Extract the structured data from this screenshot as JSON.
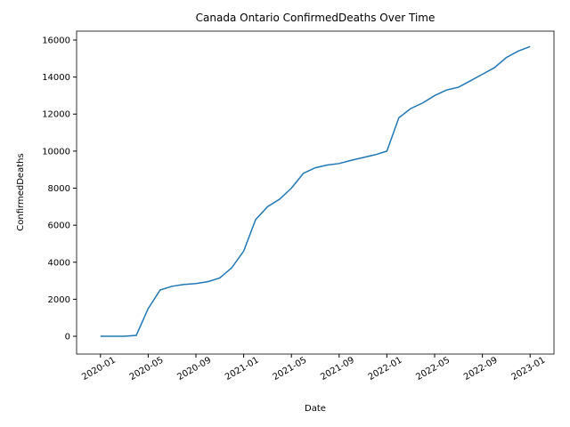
{
  "chart_data": {
    "type": "line",
    "title": "Canada Ontario ConfirmedDeaths Over Time",
    "x_label": "Date",
    "y_label": "ConfirmedDeaths",
    "x": [
      "2020-01",
      "2020-02",
      "2020-03",
      "2020-04",
      "2020-05",
      "2020-06",
      "2020-07",
      "2020-08",
      "2020-09",
      "2020-10",
      "2020-11",
      "2020-12",
      "2021-01",
      "2021-02",
      "2021-03",
      "2021-04",
      "2021-05",
      "2021-06",
      "2021-07",
      "2021-08",
      "2021-09",
      "2021-10",
      "2021-11",
      "2021-12",
      "2022-01",
      "2022-02",
      "2022-03",
      "2022-04",
      "2022-05",
      "2022-06",
      "2022-07",
      "2022-08",
      "2022-09",
      "2022-10",
      "2022-11",
      "2022-12",
      "2023-01"
    ],
    "series": [
      {
        "name": "ConfirmedDeaths",
        "color": "#1f77b4",
        "values": [
          0,
          0,
          0,
          50,
          1500,
          2500,
          2700,
          2800,
          2850,
          2950,
          3150,
          3700,
          4600,
          6300,
          7000,
          7400,
          8000,
          8800,
          9100,
          9250,
          9330,
          9500,
          9650,
          9800,
          10000,
          11800,
          12300,
          12600,
          13000,
          13300,
          13450,
          13800,
          14150,
          14500,
          15050,
          15400,
          15650
        ]
      }
    ],
    "xlim": [
      "2019-11",
      "2023-03"
    ],
    "xticks": [
      "2020-01",
      "2020-05",
      "2020-09",
      "2021-01",
      "2021-05",
      "2021-09",
      "2022-01",
      "2022-05",
      "2022-09",
      "2023-01"
    ],
    "ylim": [
      -960,
      16480
    ],
    "yticks": [
      0,
      2000,
      4000,
      6000,
      8000,
      10000,
      12000,
      14000,
      16000
    ],
    "grid": false
  }
}
